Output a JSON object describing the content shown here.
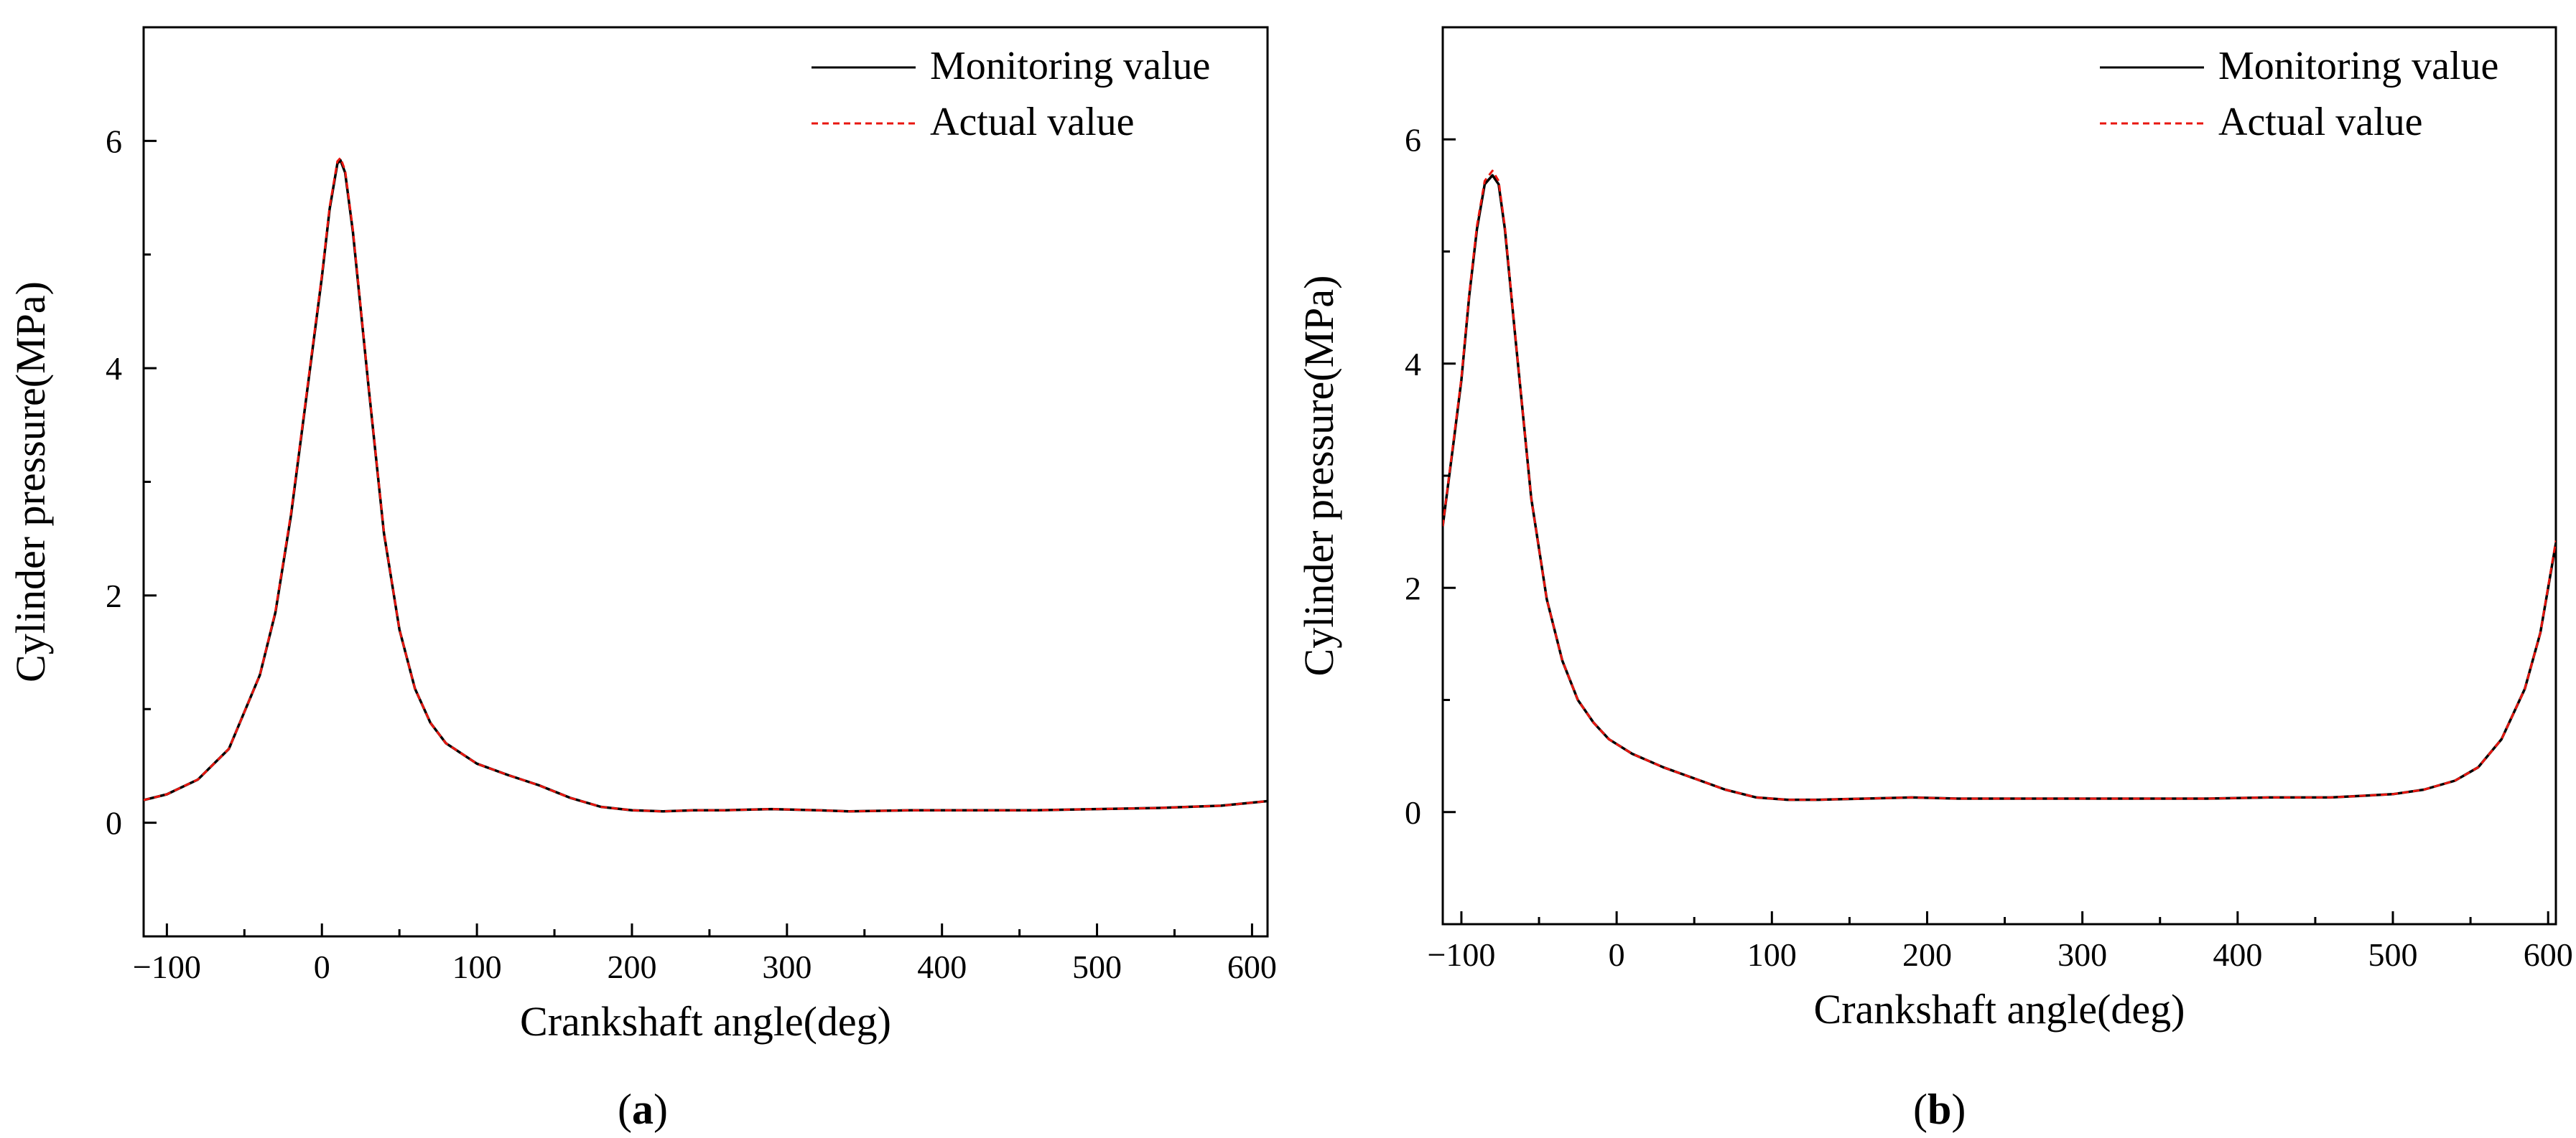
{
  "figure": {
    "panels": [
      {
        "id": "a",
        "label": "a"
      },
      {
        "id": "b",
        "label": "b"
      }
    ]
  },
  "colors": {
    "monitoring": "#000000",
    "actual": "#e8160f",
    "axis": "#000000"
  },
  "chart_data": [
    {
      "type": "line",
      "panel": "a",
      "xlabel": "Crankshaft angle(deg)",
      "ylabel": "Cylinder pressure(MPa)",
      "xlim": [
        -115,
        610
      ],
      "ylim": [
        -1.0,
        7.0
      ],
      "xticks": [
        -100,
        0,
        100,
        200,
        300,
        400,
        500,
        600
      ],
      "xtick_labels": [
        "−100",
        "0",
        "100",
        "200",
        "300",
        "400",
        "500",
        "600"
      ],
      "yticks": [
        0,
        2,
        4,
        6
      ],
      "ytick_labels": [
        "0",
        "2",
        "4",
        "6"
      ],
      "legend": {
        "position": "top-right",
        "entries": [
          "Monitoring value",
          "Actual value"
        ]
      },
      "series": [
        {
          "name": "Monitoring value",
          "style": "solid",
          "x": [
            -115,
            -100,
            -80,
            -60,
            -40,
            -30,
            -20,
            -10,
            0,
            5,
            10,
            12,
            15,
            20,
            30,
            40,
            50,
            60,
            70,
            80,
            100,
            120,
            140,
            160,
            180,
            200,
            220,
            240,
            260,
            290,
            320,
            340,
            380,
            420,
            460,
            500,
            540,
            580,
            610
          ],
          "y": [
            0.2,
            0.25,
            0.38,
            0.65,
            1.3,
            1.85,
            2.7,
            3.75,
            4.8,
            5.4,
            5.8,
            5.83,
            5.72,
            5.2,
            3.85,
            2.55,
            1.7,
            1.18,
            0.88,
            0.7,
            0.52,
            0.42,
            0.33,
            0.22,
            0.14,
            0.11,
            0.1,
            0.11,
            0.11,
            0.12,
            0.11,
            0.1,
            0.11,
            0.11,
            0.11,
            0.12,
            0.13,
            0.15,
            0.19
          ]
        },
        {
          "name": "Actual value",
          "style": "dashed",
          "x": [
            -115,
            -100,
            -80,
            -60,
            -40,
            -30,
            -20,
            -10,
            0,
            5,
            10,
            12,
            15,
            20,
            30,
            40,
            50,
            60,
            70,
            80,
            100,
            120,
            140,
            160,
            180,
            200,
            220,
            240,
            260,
            290,
            320,
            340,
            380,
            420,
            460,
            500,
            540,
            580,
            610
          ],
          "y": [
            0.2,
            0.25,
            0.38,
            0.65,
            1.3,
            1.86,
            2.72,
            3.77,
            4.82,
            5.42,
            5.82,
            5.85,
            5.74,
            5.22,
            3.86,
            2.56,
            1.7,
            1.18,
            0.88,
            0.7,
            0.52,
            0.42,
            0.33,
            0.22,
            0.14,
            0.11,
            0.1,
            0.11,
            0.11,
            0.12,
            0.11,
            0.1,
            0.11,
            0.11,
            0.11,
            0.12,
            0.13,
            0.15,
            0.19
          ]
        }
      ]
    },
    {
      "type": "line",
      "panel": "b",
      "xlabel": "Crankshaft angle(deg)",
      "ylabel": "Cylinder pressure(MPa)",
      "xlim": [
        -112,
        605
      ],
      "ylim": [
        -1.0,
        7.0
      ],
      "xticks": [
        -100,
        0,
        100,
        200,
        300,
        400,
        500,
        600
      ],
      "xtick_labels": [
        "−100",
        "0",
        "100",
        "200",
        "300",
        "400",
        "500",
        "600"
      ],
      "yticks": [
        0,
        2,
        4,
        6
      ],
      "ytick_labels": [
        "0",
        "2",
        "4",
        "6"
      ],
      "legend": {
        "position": "top-right",
        "entries": [
          "Monitoring value",
          "Actual value"
        ]
      },
      "series": [
        {
          "name": "Monitoring value",
          "style": "solid",
          "x": [
            -112,
            -105,
            -100,
            -95,
            -90,
            -85,
            -80,
            -76,
            -72,
            -65,
            -55,
            -45,
            -35,
            -25,
            -15,
            -5,
            10,
            30,
            50,
            70,
            90,
            110,
            130,
            160,
            190,
            220,
            260,
            300,
            340,
            380,
            420,
            460,
            500,
            520,
            540,
            555,
            570,
            585,
            595,
            605
          ],
          "y": [
            2.55,
            3.3,
            3.85,
            4.6,
            5.2,
            5.6,
            5.68,
            5.6,
            5.2,
            4.2,
            2.8,
            1.9,
            1.35,
            1.0,
            0.8,
            0.65,
            0.52,
            0.4,
            0.3,
            0.2,
            0.13,
            0.11,
            0.11,
            0.12,
            0.13,
            0.12,
            0.12,
            0.12,
            0.12,
            0.12,
            0.13,
            0.13,
            0.16,
            0.2,
            0.28,
            0.4,
            0.65,
            1.1,
            1.6,
            2.4
          ]
        },
        {
          "name": "Actual value",
          "style": "dashed",
          "x": [
            -112,
            -105,
            -100,
            -95,
            -90,
            -85,
            -80,
            -76,
            -72,
            -65,
            -55,
            -45,
            -35,
            -25,
            -15,
            -5,
            10,
            30,
            50,
            70,
            90,
            110,
            130,
            160,
            190,
            220,
            260,
            300,
            340,
            380,
            420,
            460,
            500,
            520,
            540,
            555,
            570,
            585,
            595,
            605
          ],
          "y": [
            2.55,
            3.32,
            3.87,
            4.62,
            5.23,
            5.63,
            5.72,
            5.63,
            5.22,
            4.21,
            2.8,
            1.9,
            1.35,
            1.0,
            0.8,
            0.65,
            0.52,
            0.4,
            0.3,
            0.2,
            0.13,
            0.11,
            0.11,
            0.12,
            0.13,
            0.12,
            0.12,
            0.12,
            0.12,
            0.12,
            0.13,
            0.13,
            0.16,
            0.2,
            0.28,
            0.4,
            0.65,
            1.1,
            1.6,
            2.42
          ]
        }
      ]
    }
  ]
}
